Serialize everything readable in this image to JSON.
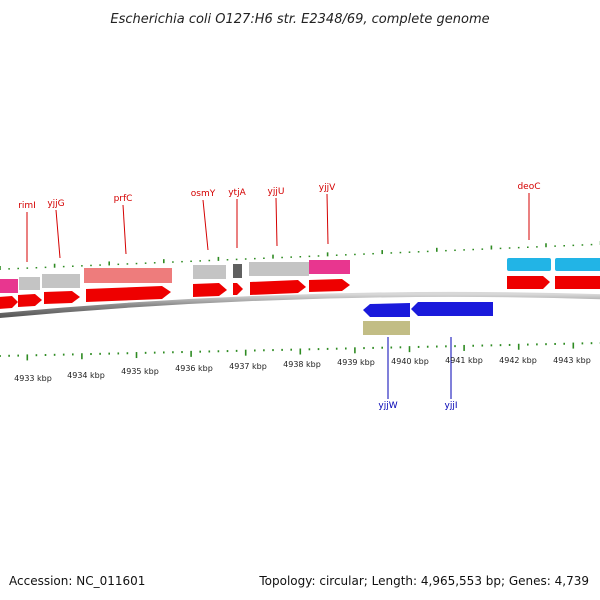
{
  "title": "Escherichia coli O127:H6 str. E2348/69, complete genome",
  "footer": {
    "accession": "Accession: NC_011601",
    "summary": "Topology: circular; Length: 4,965,553 bp; Genes: 4,739"
  },
  "axis_labels": [
    "4933 kbp",
    "4934 kbp",
    "4935 kbp",
    "4936 kbp",
    "4937 kbp",
    "4938 kbp",
    "4939 kbp",
    "4940 kbp",
    "4941 kbp",
    "4942 kbp",
    "4943 kbp"
  ],
  "top_gene_labels": [
    "rimI",
    "yjjG",
    "prfC",
    "osmY",
    "ytjA",
    "yjjU",
    "yjjV",
    "deoC"
  ],
  "bottom_gene_labels": [
    "yjjW",
    "yjjI"
  ],
  "colors": {
    "forward_cds": "#ee0000",
    "reverse_cds": "#1a1adb",
    "gene_gray": "#c4c4c4",
    "gene_pink": "#e8368f",
    "gene_salmon": "#ee7c7c",
    "gene_cyan": "#22b4e6",
    "gene_olive": "#c2bd85",
    "tick_green": "#2e8b22",
    "backbone": "#8a8a8a"
  }
}
